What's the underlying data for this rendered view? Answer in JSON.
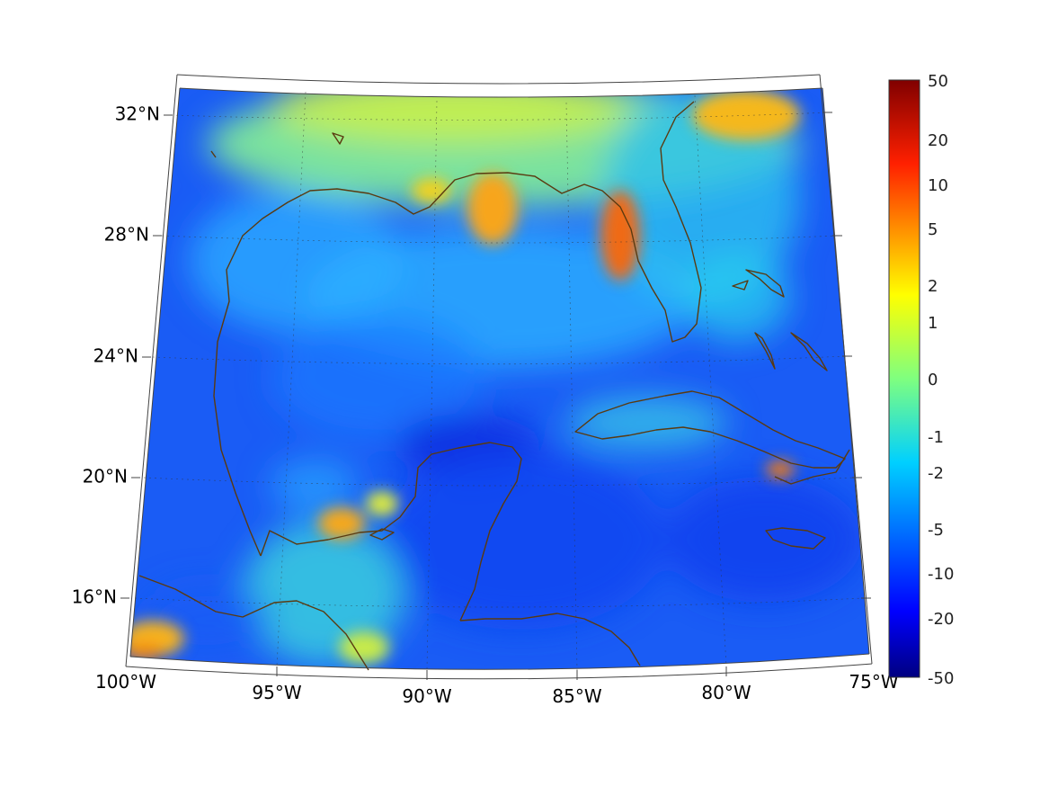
{
  "map": {
    "region": "Gulf of Mexico and Caribbean",
    "projection": "conic",
    "lon_range": [
      -100,
      -75
    ],
    "lat_range": [
      14,
      33
    ],
    "latitude_labels": [
      "32°N",
      "28°N",
      "24°N",
      "20°N",
      "16°N"
    ],
    "longitude_labels": [
      "100°W",
      "95°W",
      "90°W",
      "85°W",
      "80°W",
      "75°W"
    ],
    "coastline_color": "#5a3a10",
    "grid": "dotted"
  },
  "colorbar": {
    "colormap": "jet",
    "tick_labels": [
      "50",
      "20",
      "10",
      "5",
      "2",
      "1",
      "0",
      "-1",
      "-2",
      "-5",
      "-10",
      "-20",
      "-50"
    ],
    "top_color": "#800000",
    "bottom_color": "#000080"
  }
}
